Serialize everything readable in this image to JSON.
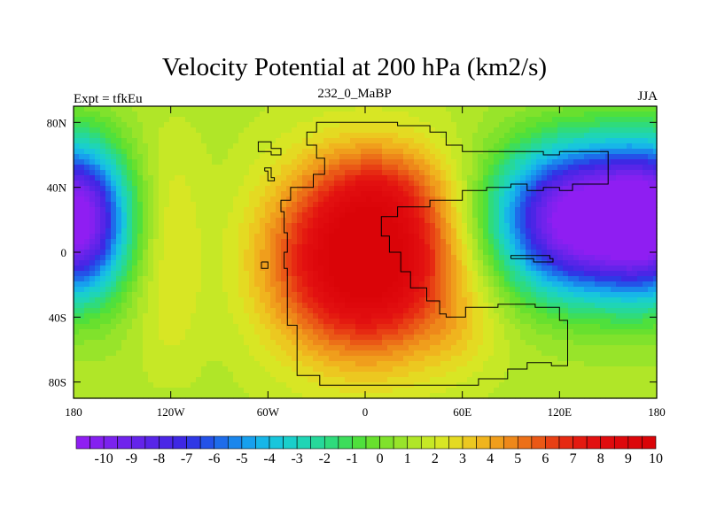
{
  "chart_data": {
    "type": "heatmap",
    "title": "Velocity Potential at 200 hPa (km2/s)",
    "subtitle_left": "Expt = tfkEu",
    "subtitle_center": "232_0_MaBP",
    "subtitle_right": "JJA",
    "xlabel": "",
    "ylabel": "",
    "xlim": [
      -180,
      180
    ],
    "ylim": [
      -90,
      90
    ],
    "x_ticks": [
      {
        "value": -180,
        "label": "180"
      },
      {
        "value": -120,
        "label": "120W"
      },
      {
        "value": -60,
        "label": "60W"
      },
      {
        "value": 0,
        "label": "0"
      },
      {
        "value": 60,
        "label": "60E"
      },
      {
        "value": 120,
        "label": "120E"
      },
      {
        "value": 180,
        "label": "180"
      }
    ],
    "y_ticks": [
      {
        "value": 80,
        "label": "80N"
      },
      {
        "value": 40,
        "label": "40N"
      },
      {
        "value": 0,
        "label": "0"
      },
      {
        "value": -40,
        "label": "40S"
      },
      {
        "value": -80,
        "label": "80S"
      }
    ],
    "colorbar": {
      "min": -10.5,
      "max": 10.5,
      "step": 0.5,
      "labels": [
        "-10",
        "-9",
        "-8",
        "-7",
        "-6",
        "-5",
        "-4",
        "-3",
        "-2",
        "-1",
        "0",
        "1",
        "2",
        "3",
        "4",
        "5",
        "6",
        "7",
        "8",
        "9",
        "10"
      ],
      "colors": [
        "#8f1ef2",
        "#8520f0",
        "#7b22ee",
        "#7023ec",
        "#6424ea",
        "#5825e8",
        "#4b26e6",
        "#3e28e4",
        "#2f38e6",
        "#2452e8",
        "#1e6cea",
        "#1a86ec",
        "#17a0ee",
        "#17b6e8",
        "#18c6dc",
        "#1acfcb",
        "#1fd5b5",
        "#26d89a",
        "#2fdb7c",
        "#3ddd5b",
        "#4fe03c",
        "#68e02e",
        "#80e22c",
        "#98e42a",
        "#b0e628",
        "#c6e826",
        "#d8e624",
        "#e4da22",
        "#ecc820",
        "#f0b41e",
        "#f09e1c",
        "#ee881a",
        "#ec7018",
        "#ea5816",
        "#e84014",
        "#e62a12",
        "#e41a10",
        "#e21010",
        "#e00c0e",
        "#de080c",
        "#dc060a",
        "#da0408"
      ]
    },
    "field": {
      "description_free": true,
      "centers": [
        {
          "lon": 0,
          "lat": -5,
          "value": 11.5,
          "sx": 40,
          "sy": 40
        },
        {
          "lon": 10,
          "lat": 40,
          "value": 3.5,
          "sx": 28,
          "sy": 20
        },
        {
          "lon": 60,
          "lat": -50,
          "value": 2.5,
          "sx": 18,
          "sy": 18
        },
        {
          "lon": 135,
          "lat": 20,
          "value": -11.5,
          "sx": 38,
          "sy": 32
        },
        {
          "lon": -180,
          "lat": 20,
          "value": -11.5,
          "sx": 22,
          "sy": 32
        },
        {
          "lon": 180,
          "lat": 20,
          "value": -6,
          "sx": 22,
          "sy": 32
        }
      ],
      "background": 1.8
    },
    "coastline": "continental outline overlay"
  }
}
